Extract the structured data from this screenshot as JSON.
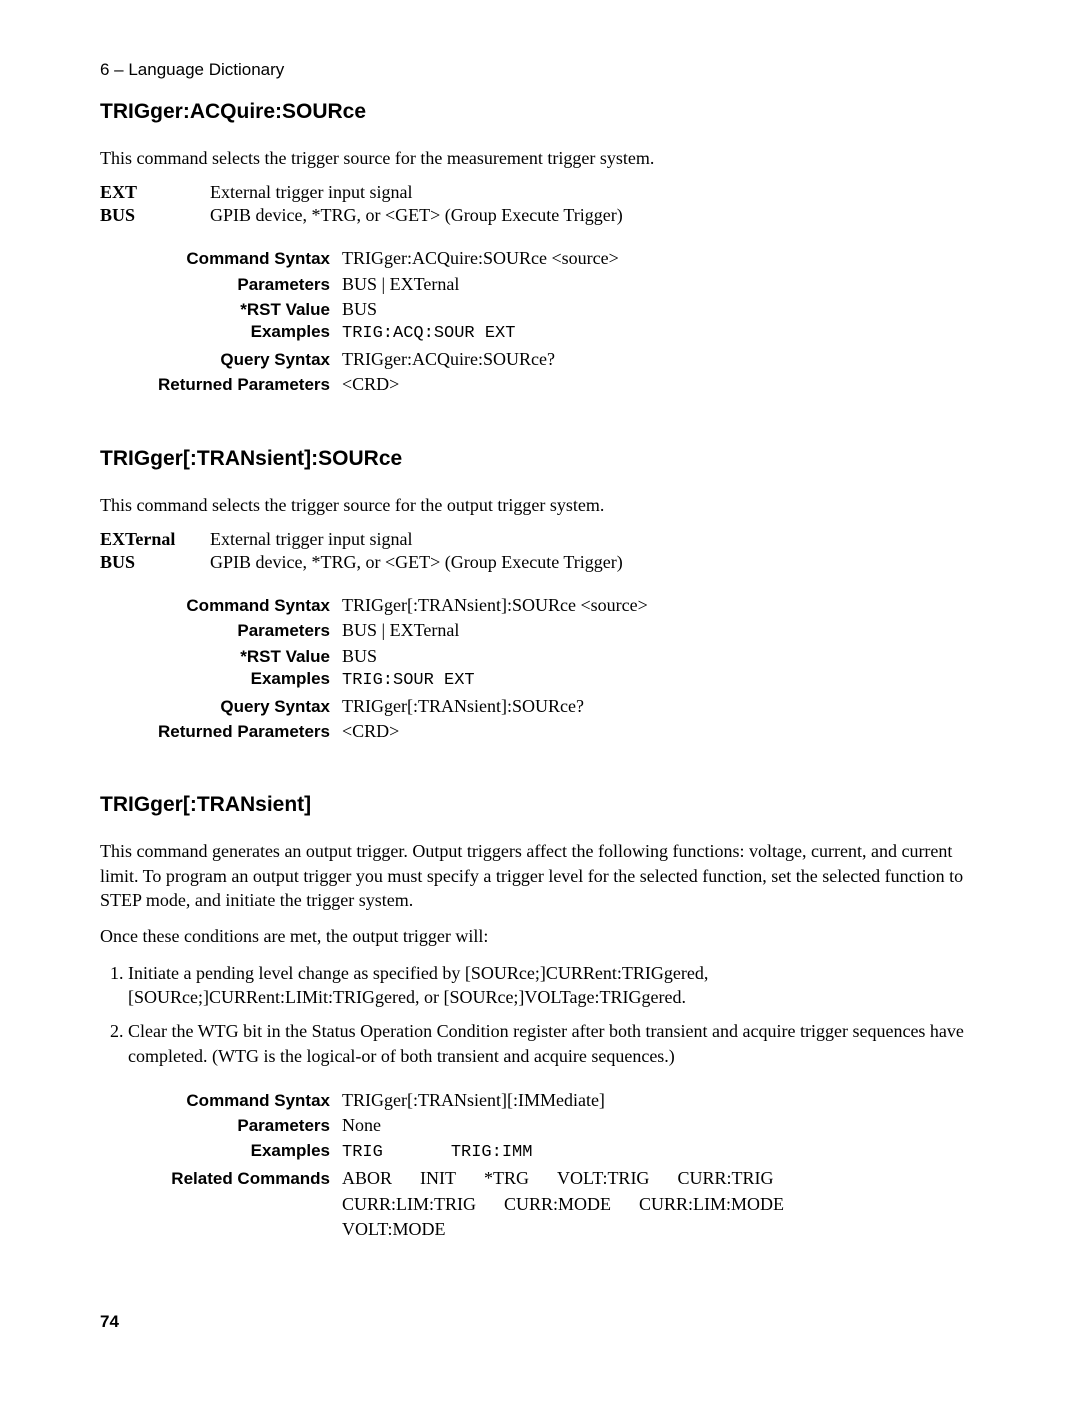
{
  "breadcrumb": "6 – Language Dictionary",
  "page_number": "74",
  "sections": [
    {
      "title": "TRIGger:ACQuire:SOURce",
      "intro": "This command selects the trigger source for the measurement trigger system.",
      "defs": [
        {
          "label": "EXT",
          "value": "External trigger input signal"
        },
        {
          "label": "BUS",
          "value": "GPIB device, *TRG, or <GET> (Group Execute Trigger)"
        }
      ],
      "spec": {
        "command_syntax": "TRIGger:ACQuire:SOURce <source>",
        "parameters": "BUS  |   EXTernal",
        "rst_value": "BUS",
        "examples": "TRIG:ACQ:SOUR EXT",
        "query_syntax": "TRIGger:ACQuire:SOURce?",
        "returned_parameters": "<CRD>"
      }
    },
    {
      "title": "TRIGger[:TRANsient]:SOURce",
      "intro": "This command selects the trigger source for the output trigger system.",
      "defs": [
        {
          "label": "EXTernal",
          "value": "External trigger input signal"
        },
        {
          "label": "BUS",
          "value": "GPIB device, *TRG, or <GET> (Group Execute Trigger)"
        }
      ],
      "spec": {
        "command_syntax": "TRIGger[:TRANsient]:SOURce <source>",
        "parameters": "BUS  |   EXTernal",
        "rst_value": "BUS",
        "examples": "TRIG:SOUR EXT",
        "query_syntax": "TRIGger[:TRANsient]:SOURce?",
        "returned_parameters": "<CRD>"
      }
    },
    {
      "title": "TRIGger[:TRANsient]",
      "para1": "This command generates an output trigger. Output triggers affect the following functions: voltage, current, and current limit. To program an output trigger you must specify a trigger level for the selected function, set the selected function to STEP mode, and initiate the trigger system.",
      "para2": "Once these conditions are met, the output trigger will:",
      "list": [
        "Initiate a pending level change as specified by [SOURce;]CURRent:TRIGgered, [SOURce;]CURRent:LIMit:TRIGgered, or [SOURce;]VOLTage:TRIGgered.",
        "Clear the WTG bit in the Status Operation Condition register after both transient and acquire trigger sequences have completed. (WTG is the logical-or of both transient and acquire sequences.)"
      ],
      "spec": {
        "command_syntax": "TRIGger[:TRANsient][:IMMediate]",
        "parameters": "None",
        "examples_a": "TRIG",
        "examples_b": "TRIG:IMM",
        "related_line1a": "ABOR",
        "related_line1b": "INIT",
        "related_line1c": "*TRG",
        "related_line1d": "VOLT:TRIG",
        "related_line1e": "CURR:TRIG",
        "related_line2a": "CURR:LIM:TRIG",
        "related_line2b": "CURR:MODE",
        "related_line2c": "CURR:LIM:MODE",
        "related_line3": "VOLT:MODE"
      }
    }
  ],
  "labels": {
    "command_syntax": "Command Syntax",
    "parameters": "Parameters",
    "rst_value": "*RST Value",
    "examples": "Examples",
    "query_syntax": "Query Syntax",
    "returned_parameters": "Returned Parameters",
    "related_commands": "Related Commands"
  }
}
